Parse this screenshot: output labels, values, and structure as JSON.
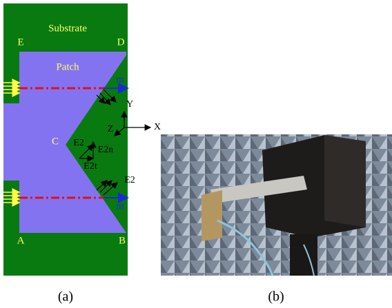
{
  "figure": {
    "panel_a": {
      "substrate_label": "Substrate",
      "patch_label": "Patch",
      "corners": {
        "A": "A",
        "B": "B",
        "C": "C",
        "D": "D",
        "E": "E"
      },
      "m_top": "m",
      "m_bottom": "m",
      "axes": {
        "x": "X",
        "y": "Y",
        "z": "Z"
      },
      "field_labels": {
        "e2": "E2",
        "e2n": "E2n",
        "e2t": "E2t",
        "e2_lower": "E2"
      }
    },
    "captions": {
      "a": "(a)",
      "b": "(b)"
    }
  }
}
